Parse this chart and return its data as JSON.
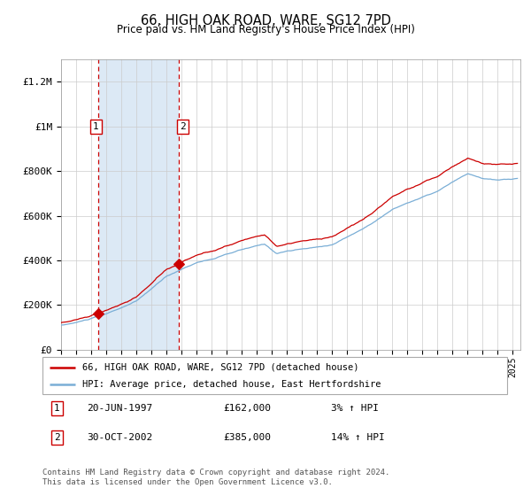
{
  "title": "66, HIGH OAK ROAD, WARE, SG12 7PD",
  "subtitle": "Price paid vs. HM Land Registry's House Price Index (HPI)",
  "x_start": 1995.0,
  "x_end": 2025.5,
  "ylim": [
    0,
    1300000
  ],
  "yticks": [
    0,
    200000,
    400000,
    600000,
    800000,
    1000000,
    1200000
  ],
  "ytick_labels": [
    "£0",
    "£200K",
    "£400K",
    "£600K",
    "£800K",
    "£1M",
    "£1.2M"
  ],
  "sale1_date": 1997.47,
  "sale1_price": 162000,
  "sale1_label": "1",
  "sale2_date": 2002.83,
  "sale2_price": 385000,
  "sale2_label": "2",
  "shade_color": "#dce9f5",
  "hpi_color": "#7aaed6",
  "price_color": "#cc0000",
  "dashed_color": "#cc0000",
  "legend_label_price": "66, HIGH OAK ROAD, WARE, SG12 7PD (detached house)",
  "legend_label_hpi": "HPI: Average price, detached house, East Hertfordshire",
  "footnote": "Contains HM Land Registry data © Crown copyright and database right 2024.\nThis data is licensed under the Open Government Licence v3.0.",
  "xtick_years": [
    1995,
    1996,
    1997,
    1998,
    1999,
    2000,
    2001,
    2002,
    2003,
    2004,
    2005,
    2006,
    2007,
    2008,
    2009,
    2010,
    2011,
    2012,
    2013,
    2014,
    2015,
    2016,
    2017,
    2018,
    2019,
    2020,
    2021,
    2022,
    2023,
    2024,
    2025
  ],
  "fig_width": 6.0,
  "fig_height": 5.6,
  "dpi": 100
}
